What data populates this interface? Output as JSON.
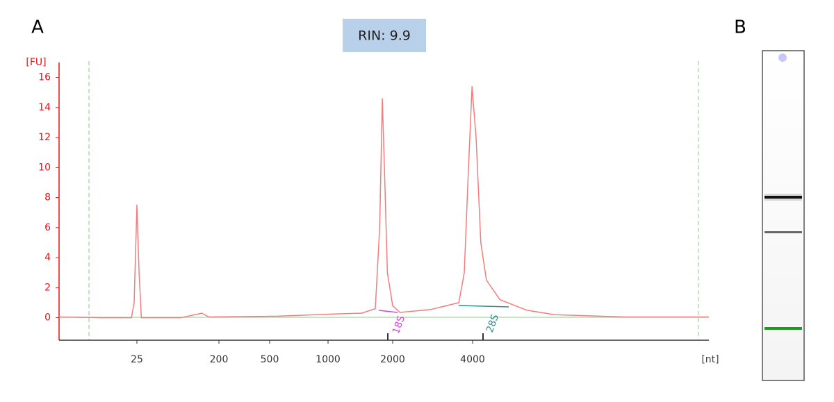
{
  "chart_data": {
    "type": "line",
    "panel_labels": [
      "A",
      "B"
    ],
    "rin_label": "RIN: 9.9",
    "y_label": "[FU]",
    "x_label": "[nt]",
    "peak_labels": [
      "18S",
      "28S"
    ],
    "x": [
      4,
      10.9,
      22,
      23.4,
      25,
      26.4,
      28,
      76,
      130,
      155,
      550,
      1060,
      1430,
      1660,
      1740,
      1790,
      1830,
      1890,
      2000,
      2130,
      2790,
      3550,
      3720,
      3860,
      3980,
      4120,
      4290,
      4500,
      5050,
      6350,
      8050,
      14700,
      30000
    ],
    "values": [
      0.05,
      0,
      0,
      1,
      7.5,
      3,
      0,
      0,
      0.3,
      0.05,
      0.1,
      0.25,
      0.3,
      0.6,
      6,
      14.6,
      10,
      3,
      0.8,
      0.35,
      0.55,
      1,
      3,
      10,
      15.4,
      12,
      5,
      2.5,
      1.2,
      0.5,
      0.2,
      0.05,
      0.05
    ],
    "color": "#f47c7c",
    "axis_color": "#ee1111",
    "xlim": [
      4,
      30000
    ],
    "xticks": [
      25,
      200,
      500,
      1000,
      2000,
      4000
    ],
    "ylim": [
      -1.5,
      17
    ],
    "yticks": [
      0,
      2,
      4,
      6,
      8,
      10,
      12,
      14,
      16
    ],
    "grid": false
  }
}
